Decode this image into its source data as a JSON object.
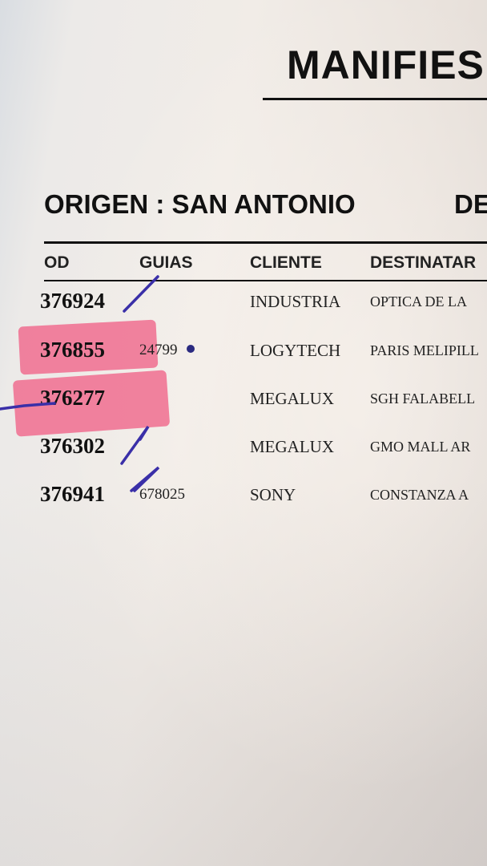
{
  "document": {
    "title": "MANIFIES",
    "origin_label": "ORIGEN : SAN ANTONIO",
    "dest_label": "DE",
    "columns": [
      "OD",
      "GUIAS",
      "CLIENTE",
      "DESTINATAR"
    ],
    "rows": [
      {
        "code": "376924",
        "guia": "",
        "cliente": "INDUSTRIA",
        "destinatario": "OPTICA DE LA"
      },
      {
        "code": "376855",
        "guia": "24799",
        "cliente": "LOGYTECH",
        "destinatario": "PARIS MELIPILL"
      },
      {
        "code": "376277",
        "guia": "",
        "cliente": "MEGALUX",
        "destinatario": "SGH FALABELL"
      },
      {
        "code": "376302",
        "guia": "",
        "cliente": "MEGALUX",
        "destinatario": "GMO MALL AR"
      },
      {
        "code": "376941",
        "guia": "678025",
        "cliente": "SONY",
        "destinatario": "CONSTANZA A"
      }
    ],
    "highlight_color": "#f06d8f",
    "pen_color": "#3a2fa8"
  }
}
